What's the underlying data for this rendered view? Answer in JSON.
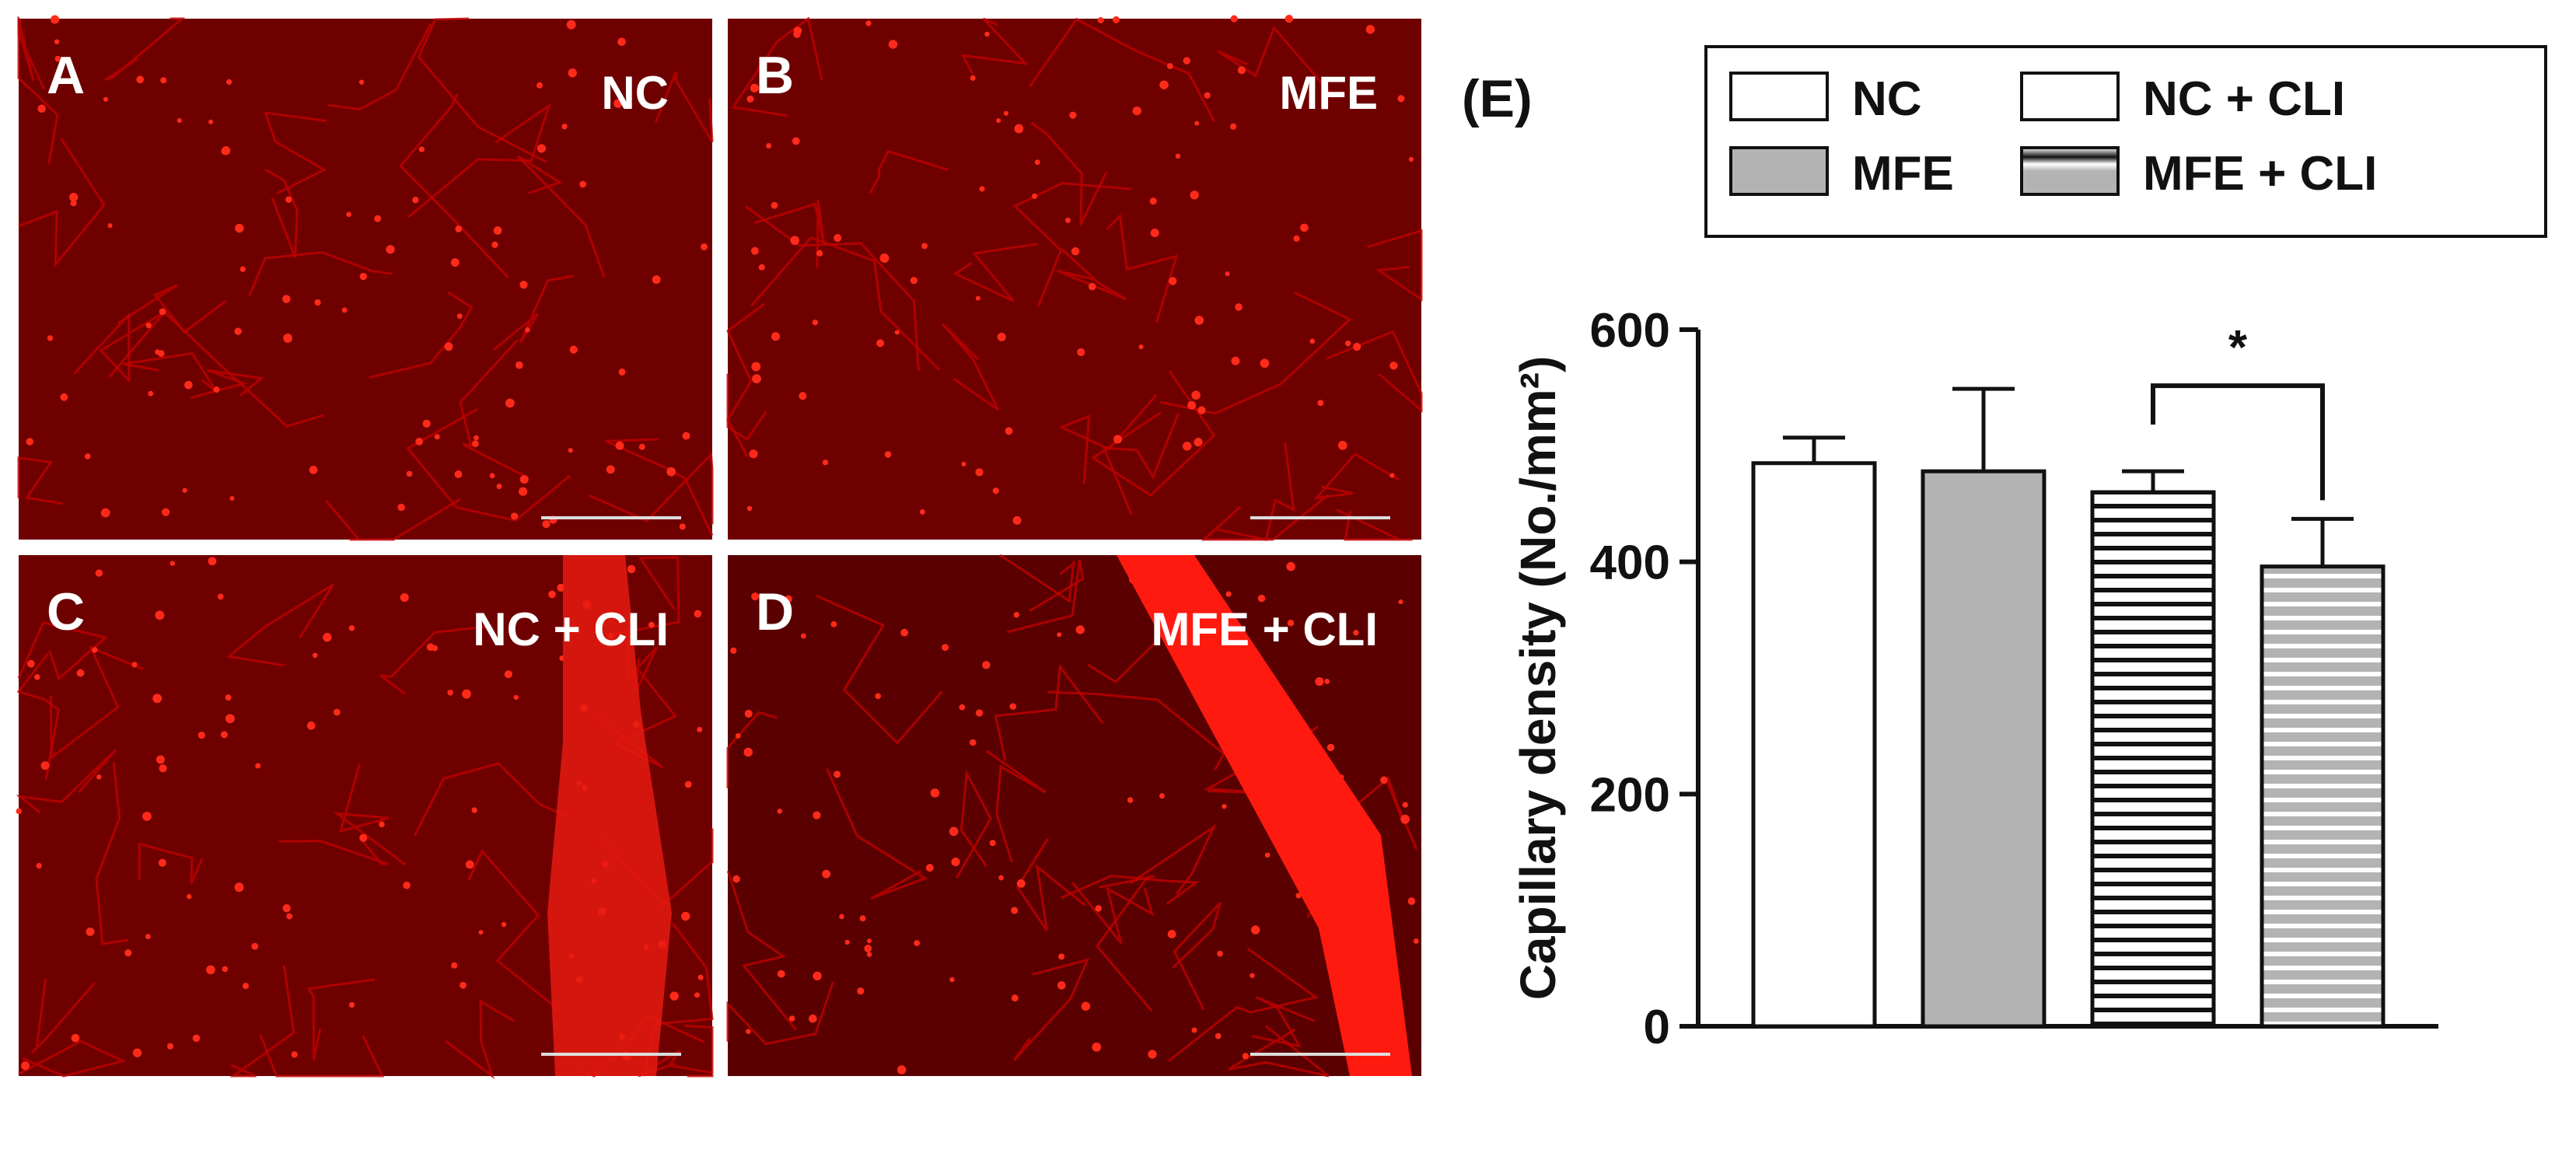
{
  "panels": [
    {
      "letter": "A",
      "label": "NC"
    },
    {
      "letter": "B",
      "label": "MFE"
    },
    {
      "letter": "C",
      "label": "NC + CLI"
    },
    {
      "letter": "D",
      "label": "MFE + CLI"
    }
  ],
  "chart_data": {
    "type": "bar",
    "panel_label": "(E)",
    "ylabel": "Capillary density (No./mm²)",
    "categories": [
      "NC",
      "MFE",
      "NC + CLI",
      "MFE + CLI"
    ],
    "values": [
      485,
      478,
      460,
      396
    ],
    "errors": [
      22,
      71,
      18,
      41
    ],
    "colors": [
      "#ffffff",
      "#b3b3b3",
      "#ffffff",
      "#b3b3b3"
    ],
    "hatched": [
      false,
      false,
      true,
      true
    ],
    "ylim": [
      0,
      600
    ],
    "yticks": [
      0,
      200,
      400,
      600
    ],
    "significance": "*"
  }
}
